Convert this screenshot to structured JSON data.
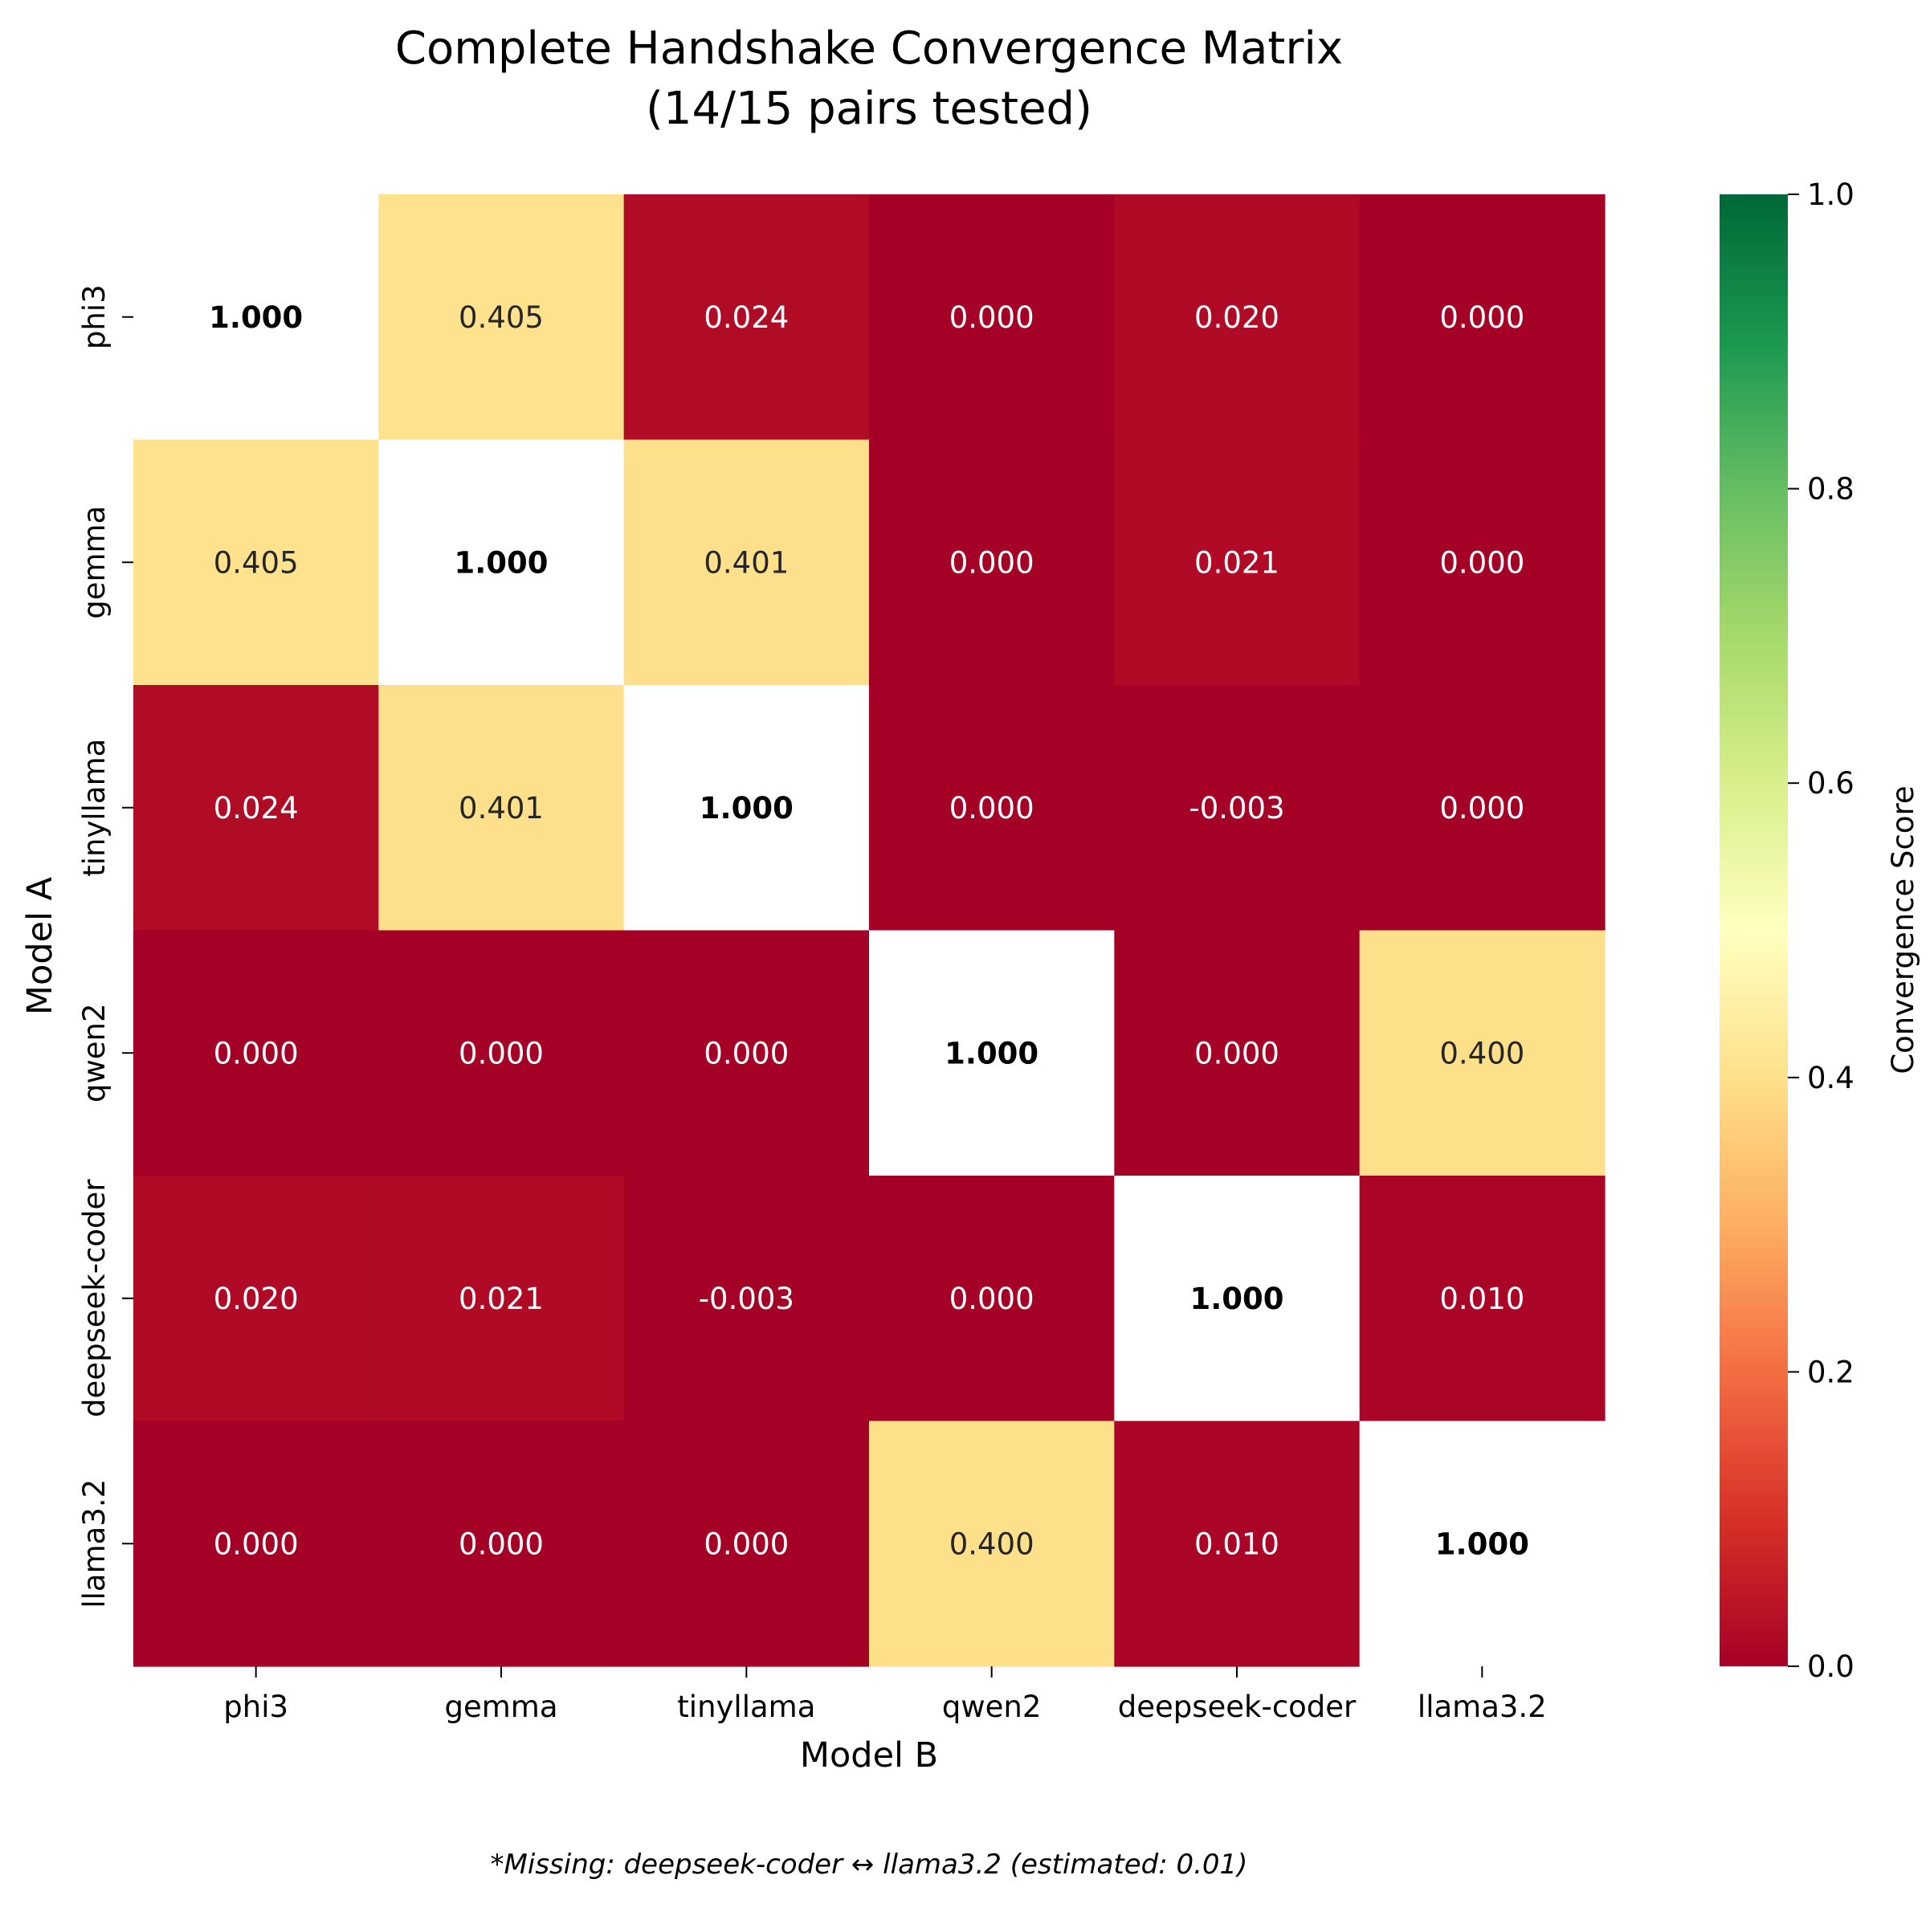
{
  "chart_data": {
    "type": "heatmap",
    "title": "Complete Handshake Convergence Matrix",
    "subtitle": "(14/15 pairs tested)",
    "xlabel": "Model B",
    "ylabel": "Model A",
    "x_categories": [
      "phi3",
      "gemma",
      "tinyllama",
      "qwen2",
      "deepseek-coder",
      "llama3.2"
    ],
    "y_categories": [
      "phi3",
      "gemma",
      "tinyllama",
      "qwen2",
      "deepseek-coder",
      "llama3.2"
    ],
    "values": [
      [
        1.0,
        0.405,
        0.024,
        0.0,
        0.02,
        0.0
      ],
      [
        0.405,
        1.0,
        0.401,
        0.0,
        0.021,
        0.0
      ],
      [
        0.024,
        0.401,
        1.0,
        0.0,
        -0.003,
        0.0
      ],
      [
        0.0,
        0.0,
        0.0,
        1.0,
        0.0,
        0.4
      ],
      [
        0.02,
        0.021,
        -0.003,
        0.0,
        1.0,
        0.01
      ],
      [
        0.0,
        0.0,
        0.0,
        0.4,
        0.01,
        1.0
      ]
    ],
    "labels": [
      [
        "1.000",
        "0.405",
        "0.024",
        "0.000",
        "0.020",
        "0.000"
      ],
      [
        "0.405",
        "1.000",
        "0.401",
        "0.000",
        "0.021",
        "0.000"
      ],
      [
        "0.024",
        "0.401",
        "1.000",
        "0.000",
        "-0.003",
        "0.000"
      ],
      [
        "0.000",
        "0.000",
        "0.000",
        "1.000",
        "0.000",
        "0.400"
      ],
      [
        "0.020",
        "0.021",
        "-0.003",
        "0.000",
        "1.000",
        "0.010"
      ],
      [
        "0.000",
        "0.000",
        "0.000",
        "0.400",
        "0.010",
        "1.000"
      ]
    ],
    "diagonal_style": "white cell, bold black value",
    "colormap": "RdYlGn",
    "vmin": 0.0,
    "vmax": 1.0,
    "colorbar": {
      "label": "Convergence Score",
      "ticks": [
        0.0,
        0.2,
        0.4,
        0.6,
        0.8,
        1.0
      ],
      "tick_labels": [
        "0.0",
        "0.2",
        "0.4",
        "0.6",
        "0.8",
        "1.0"
      ]
    },
    "footnote": "*Missing: deepseek-coder ↔ llama3.2 (estimated: 0.01)"
  }
}
